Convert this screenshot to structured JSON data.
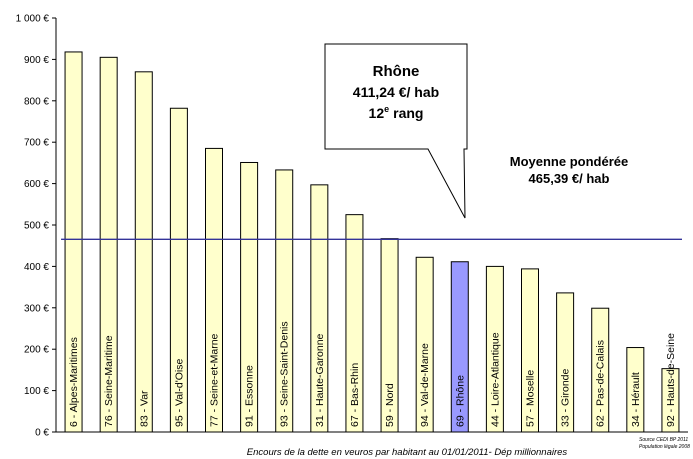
{
  "chart_data": {
    "type": "bar",
    "categories": [
      "6 - Alpes-Maritimes",
      "76 - Seine-Maritime",
      "83 - Var",
      "95 - Val-d'Oise",
      "77 - Seine-et-Marne",
      "91 - Essonne",
      "93 - Seine-Saint-Denis",
      "31 - Haute-Garonne",
      "67 - Bas-Rhin",
      "59 - Nord",
      "94 - Val-de-Marne",
      "69 - Rhône",
      "44 - Loire-Atlantique",
      "57 - Moselle",
      "33 - Gironde",
      "62 - Pas-de-Calais",
      "34 - Hérault",
      "92 - Hauts-de-Seine"
    ],
    "values": [
      918,
      905,
      870,
      782,
      685,
      651,
      633,
      597,
      525,
      467,
      422,
      411.24,
      400,
      394,
      336,
      299,
      204,
      153
    ],
    "highlight_category": "69 - Rhône",
    "colors": {
      "bar": "#FFFFCC",
      "highlight": "#9999FF",
      "bar_stroke": "#000000",
      "average_line": "#333399"
    },
    "ylim": [
      0,
      1000
    ],
    "yticks": [
      0,
      100,
      200,
      300,
      400,
      500,
      600,
      700,
      800,
      900,
      1000
    ],
    "ytick_labels": [
      "0 €",
      "100 €",
      "200 €",
      "300 €",
      "400 €",
      "500 €",
      "600 €",
      "700 €",
      "800 €",
      "900 €",
      "1 000 €"
    ],
    "average": {
      "value": 465.39,
      "label_line1": "Moyenne pondérée",
      "label_line2": "465,39 €/ hab"
    },
    "callout": {
      "line1": "Rhône",
      "line2": "411,24 €/ hab",
      "line3_num": "12",
      "line3_sup": "e",
      "line3_word": "rang"
    },
    "source_line1": "Source CEDI BP 2011",
    "source_line2": "Population légale 2008",
    "caption": "Encours de la dette en veuros par habitant au 01/01/2011- Dép millionnaires",
    "grid": false,
    "legend": "none"
  }
}
